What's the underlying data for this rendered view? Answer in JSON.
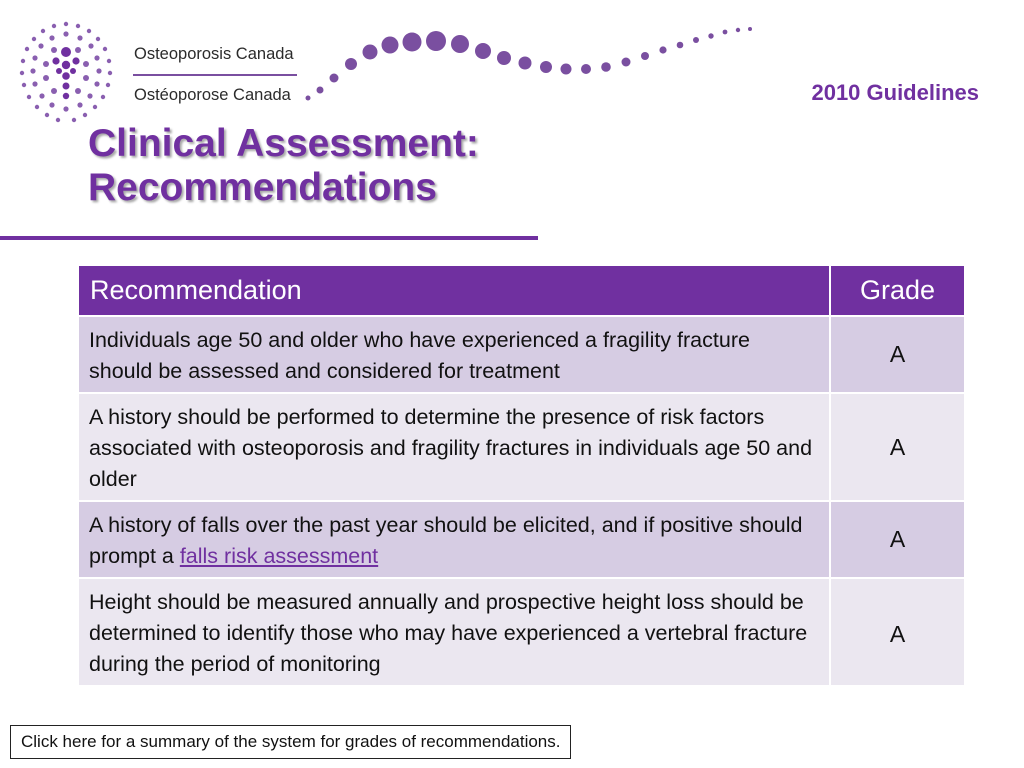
{
  "header": {
    "org_name_en": "Osteoporosis Canada",
    "org_name_fr": "Ostéoporose Canada",
    "guidelines_label": "2010 Guidelines",
    "logo_icon": "osteoporosis-canada-logo-icon",
    "brand_color": "#7030a0"
  },
  "slide": {
    "title_line1": "Clinical Assessment:",
    "title_line2": "Recommendations"
  },
  "table": {
    "header_recommendation": "Recommendation",
    "header_grade": "Grade",
    "rows": [
      {
        "text": "Individuals age 50 and older who have experienced a fragility fracture should be assessed and considered for treatment",
        "grade": "A"
      },
      {
        "text": "A history should be performed to determine the presence of risk factors associated with osteoporosis and fragility fractures in individuals age 50 and older",
        "grade": "A"
      },
      {
        "text_before_link": "A history of falls over the past year should be elicited, and if positive should prompt a ",
        "link_text": "falls risk assessment",
        "grade": "A"
      },
      {
        "text": "Height should be measured annually and prospective height loss should be determined to identify those who may have experienced a vertebral fracture during the period of monitoring",
        "grade": "A"
      }
    ]
  },
  "footer": {
    "summary_link": "Click here for a summary of the system for grades of recommendations."
  }
}
